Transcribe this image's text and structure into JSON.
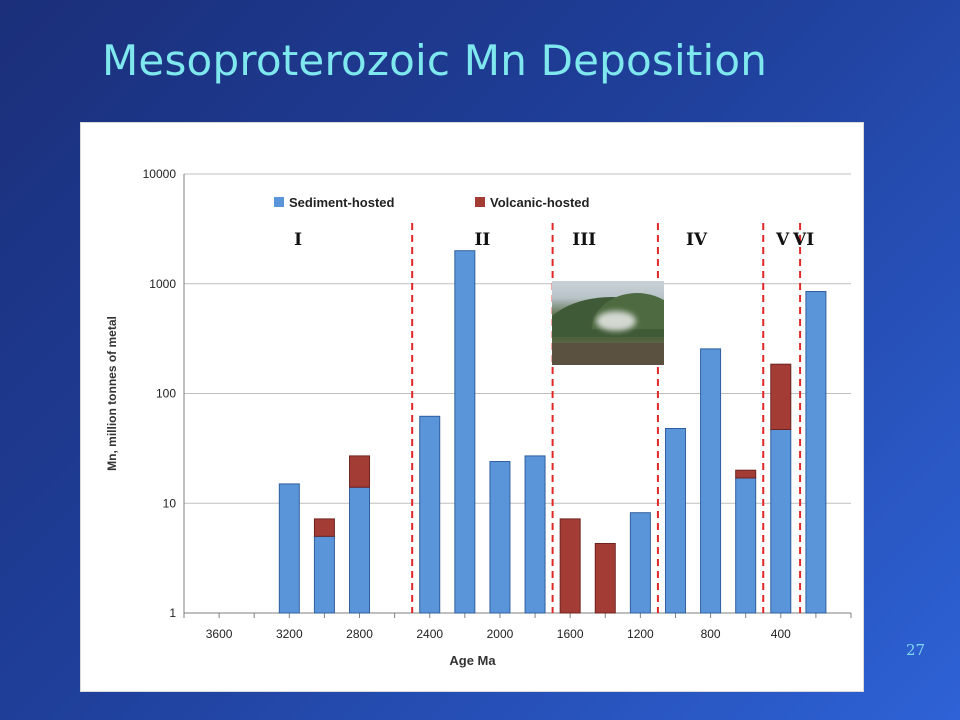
{
  "slide": {
    "title": "Mesoproterozoic Mn Deposition",
    "page_number": "27"
  },
  "chart_data": {
    "type": "bar",
    "stacked": true,
    "scale": "log",
    "xlabel": "Age Ma",
    "ylabel": "Mn, million tonnes of metal",
    "ylim": [
      1,
      10000
    ],
    "y_ticks": [
      1,
      10,
      100,
      1000,
      10000
    ],
    "x_axis_max": 3800,
    "x_axis_min": 0,
    "x_ticks": [
      3600,
      3200,
      2800,
      2400,
      2000,
      1600,
      1200,
      800,
      400
    ],
    "categories": [
      3600,
      3400,
      3200,
      3000,
      2800,
      2600,
      2400,
      2200,
      2000,
      1800,
      1600,
      1400,
      1200,
      1000,
      800,
      600,
      400,
      200
    ],
    "series": [
      {
        "name": "Sediment-hosted",
        "color": "#5b95d9",
        "values": [
          0,
          0,
          15,
          5,
          14,
          0,
          62,
          2000,
          24,
          27,
          0,
          0,
          8.2,
          48,
          255,
          17,
          47,
          850
        ]
      },
      {
        "name": "Volcanic-hosted",
        "color": "#a43c36",
        "values": [
          0,
          0,
          0,
          2.2,
          13,
          0,
          0,
          0,
          0,
          0,
          6.2,
          3.3,
          0,
          0,
          0,
          3,
          138,
          0
        ]
      }
    ],
    "legend_position": "top-left",
    "grid": "horizontal",
    "period_boundaries_ma": [
      2500,
      1700,
      1100,
      500,
      290
    ],
    "period_boundary_color": "#e02828",
    "periods": [
      {
        "label": "I",
        "label_at_ma": 3150
      },
      {
        "label": "II",
        "label_at_ma": 2100
      },
      {
        "label": "III",
        "label_at_ma": 1520
      },
      {
        "label": "IV",
        "label_at_ma": 880
      },
      {
        "label": "V",
        "label_at_ma": 390
      },
      {
        "label": "VI",
        "label_at_ma": 270
      }
    ]
  },
  "photo": {
    "icon": "landscape-photo-icon"
  }
}
